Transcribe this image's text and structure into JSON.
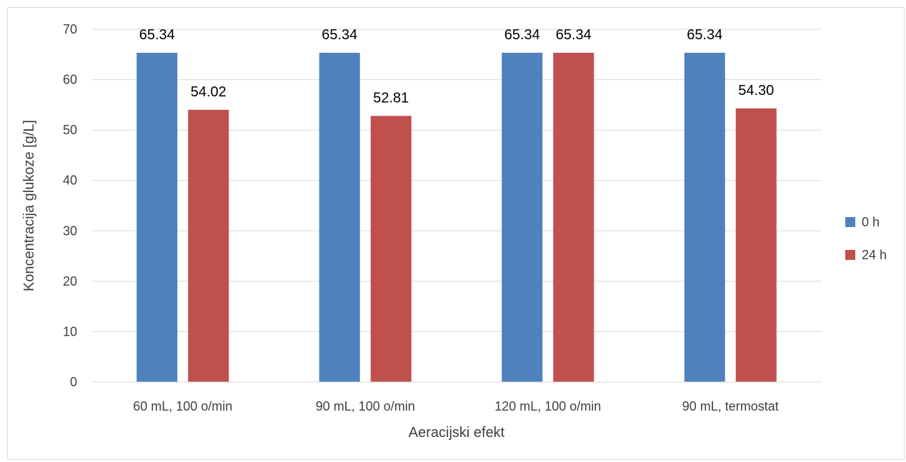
{
  "chart_data": {
    "type": "bar",
    "title": "",
    "xlabel": "Aeracijski efekt",
    "ylabel": "Koncentracija glukoze  [g/L]",
    "categories": [
      "60 mL, 100 o/min",
      "90 mL, 100 o/min",
      "120 mL, 100 o/min",
      "90 mL, termostat"
    ],
    "series": [
      {
        "name": "0 h",
        "values": [
          65.34,
          65.34,
          65.34,
          65.34
        ],
        "labels": [
          "65.34",
          "65.34",
          "65.34",
          "65.34"
        ],
        "color": "#4f81bd"
      },
      {
        "name": "24 h",
        "values": [
          54.02,
          52.81,
          65.34,
          54.3
        ],
        "labels": [
          "54.02",
          "52.81",
          "65.34",
          "54.30"
        ],
        "color": "#c0504d"
      }
    ],
    "ylim": [
      0,
      70
    ],
    "yticks": [
      0,
      10,
      20,
      30,
      40,
      50,
      60,
      70
    ],
    "grid": true,
    "legend_position": "right"
  }
}
